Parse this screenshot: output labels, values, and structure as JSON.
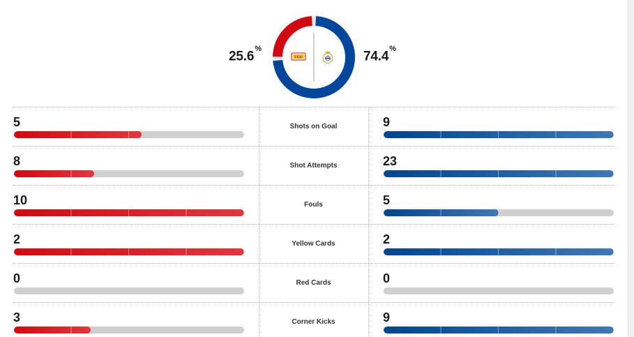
{
  "possession": {
    "home": {
      "value": 25.6,
      "number": "25.6",
      "unit": "%",
      "color": "#d10a11",
      "logo_text": "FCU"
    },
    "away": {
      "value": 74.4,
      "number": "74.4",
      "unit": "%",
      "color": "#00469a"
    }
  },
  "stats": [
    {
      "label": "Shots on Goal",
      "home": "5",
      "away": "9",
      "home_fill": 0.555,
      "away_fill": 1.0
    },
    {
      "label": "Shot Attempts",
      "home": "8",
      "away": "23",
      "home_fill": 0.348,
      "away_fill": 1.0
    },
    {
      "label": "Fouls",
      "home": "10",
      "away": "5",
      "home_fill": 1.0,
      "away_fill": 0.5
    },
    {
      "label": "Yellow Cards",
      "home": "2",
      "away": "2",
      "home_fill": 1.0,
      "away_fill": 1.0
    },
    {
      "label": "Red Cards",
      "home": "0",
      "away": "0",
      "home_fill": 0.0,
      "away_fill": 0.0
    },
    {
      "label": "Corner Kicks",
      "home": "3",
      "away": "9",
      "home_fill": 0.333,
      "away_fill": 1.0
    }
  ]
}
